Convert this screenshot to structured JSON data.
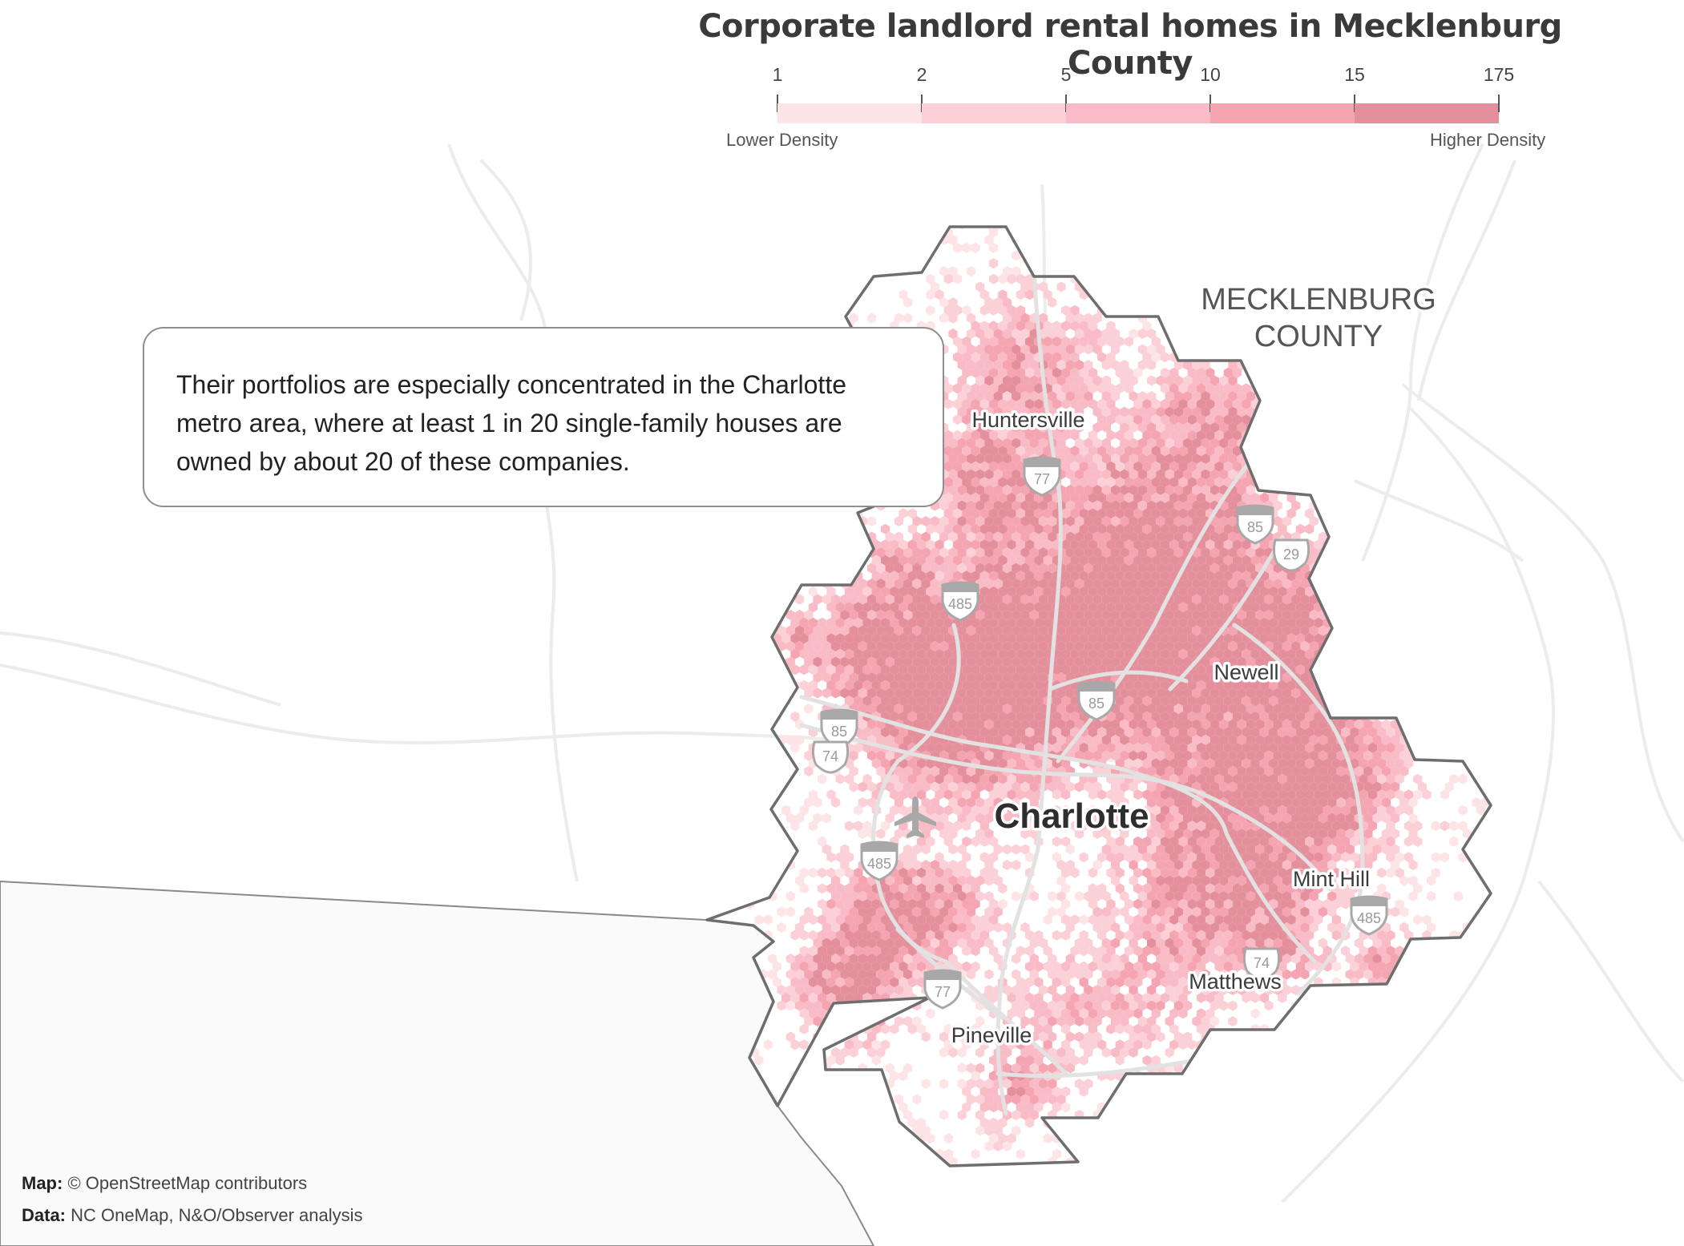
{
  "title": "Corporate landlord rental homes in Mecklenburg County",
  "legend": {
    "ticks": [
      "1",
      "2",
      "5",
      "10",
      "15",
      "175"
    ],
    "colors": [
      "#fde4e7",
      "#fbd0d7",
      "#f9bcc6",
      "#f5a5b2",
      "#e4909c"
    ],
    "low_label": "Lower Density",
    "high_label": "Higher Density"
  },
  "callout": {
    "text": "Their portfolios are especially concentrated in the Charlotte metro area, where at least 1 in 20 single-family houses are owned by about 20 of these companies."
  },
  "map": {
    "county_label_line1": "MECKLENBURG",
    "county_label_line2": "COUNTY",
    "places": {
      "huntersville": "Huntersville",
      "charlotte": "Charlotte",
      "newell": "Newell",
      "mint_hill": "Mint Hill",
      "matthews": "Matthews",
      "pineville": "Pineville"
    },
    "shields": {
      "i77_north": "77",
      "i85_north": "85",
      "us29": "29",
      "i485_nw": "485",
      "i85_center": "85",
      "i85_west": "85",
      "us74_west": "74",
      "i485_west": "485",
      "i485_east": "485",
      "us74_east": "74",
      "i77_south": "77"
    },
    "boundary_color": "#6e6e6e",
    "road_color": "#e2e2e2"
  },
  "credits": {
    "map_label": "Map:",
    "map_text": "© OpenStreetMap contributors",
    "data_label": "Data:",
    "data_text": "NC OneMap, N&O/Observer analysis"
  }
}
